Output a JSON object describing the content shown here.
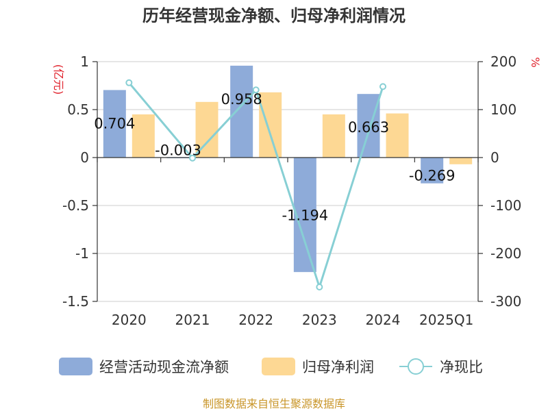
{
  "chart_data": {
    "type": "bar",
    "title": "历年经营现金净额、归母净利润情况",
    "categories": [
      "2020",
      "2021",
      "2022",
      "2023",
      "2024",
      "2025Q1"
    ],
    "left_axis": {
      "unit_label": "(亿元)",
      "range": [
        -1.5,
        1
      ],
      "ticks": [
        1,
        0.5,
        0,
        -0.5,
        -1,
        -1.5
      ],
      "tick_labels": [
        "1",
        "0.5",
        "0",
        "-0.5",
        "-1",
        "-1.5"
      ]
    },
    "right_axis": {
      "unit_label": "%",
      "range": [
        -300,
        200
      ],
      "ticks": [
        200,
        100,
        0,
        -100,
        -200,
        -300
      ],
      "tick_labels": [
        "200",
        "100",
        "0",
        "-100",
        "-200",
        "-300"
      ]
    },
    "grid": true,
    "legend_position": "bottom",
    "series": [
      {
        "name": "经营活动现金流净额",
        "type": "bar",
        "axis": "left",
        "color": "#8eabd9",
        "values": [
          0.704,
          -0.003,
          0.958,
          -1.194,
          0.663,
          -0.269
        ],
        "labels": [
          "0.704",
          "-0.003",
          "0.958",
          "-1.194",
          "0.663",
          "-0.269"
        ]
      },
      {
        "name": "归母净利润",
        "type": "bar",
        "axis": "left",
        "color": "#fdd894",
        "values": [
          0.45,
          0.58,
          0.68,
          0.45,
          0.46,
          -0.07
        ]
      },
      {
        "name": "净现比",
        "type": "line",
        "axis": "right",
        "color": "#87cfd4",
        "values": [
          156,
          -1,
          141,
          -270,
          148,
          null
        ]
      }
    ]
  },
  "source_text": "制图数据来自恒生聚源数据库",
  "colors": {
    "title": "#333333",
    "axis": "#333333",
    "grid": "#cccccc",
    "unit_label": "#e0202a",
    "source_text": "#c9962a"
  }
}
